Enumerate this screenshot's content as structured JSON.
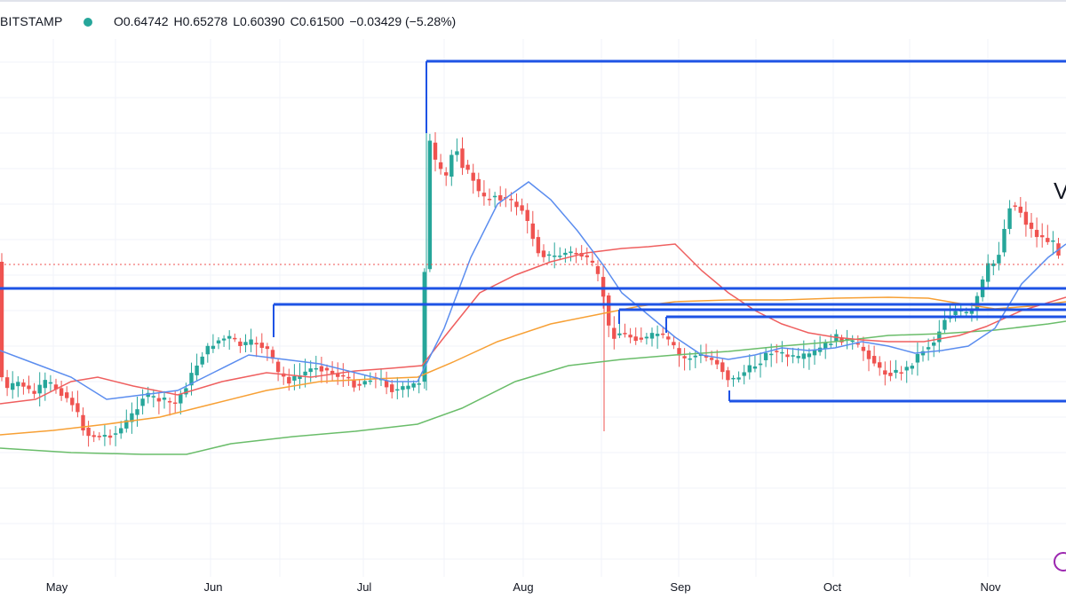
{
  "header": {
    "symbol": "BITSTAMP",
    "open": "O0.64742",
    "high": "H0.65278",
    "low": "L0.60390",
    "close": "C0.61500",
    "change": "−0.03429 (−5.28%)",
    "status_color": "#26a69a"
  },
  "colors": {
    "up": "#26a69a",
    "down": "#ef5350",
    "ma_blue": "#5b8def",
    "ma_red": "#ef5f5f",
    "ma_orange": "#f7a035",
    "ma_green": "#6abd6a",
    "levels": "#1e53e5",
    "grid": "#f0f3fa",
    "last_price_line": "#ef5350"
  },
  "chart_data": {
    "type": "candlestick",
    "x_tick_labels": [
      "May",
      "Jun",
      "Jul",
      "Aug",
      "Sep",
      "Oct",
      "Nov"
    ],
    "grid": true,
    "annotation_text": "V",
    "moving_averages": [
      "blue",
      "red",
      "orange",
      "green"
    ],
    "horizontal_levels_count": 7
  }
}
